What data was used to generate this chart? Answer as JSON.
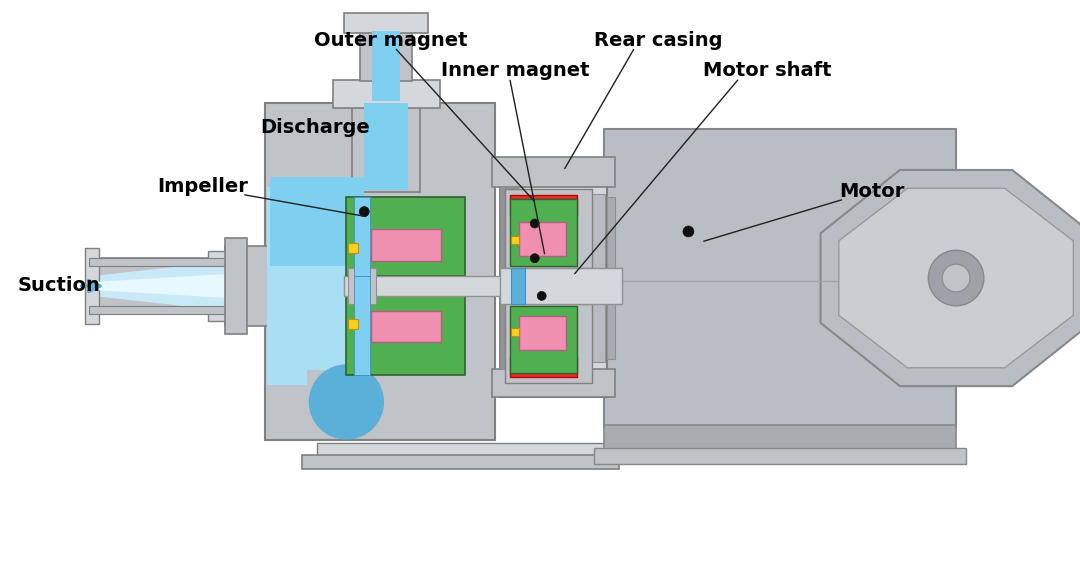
{
  "bg": "#ffffff",
  "cg1": "#c0c4c8",
  "cg2": "#d4d8dc",
  "cg3": "#a8acb0",
  "cg4": "#b8bcc0",
  "cg_dark": "#909498",
  "c_blue": "#7fd0f0",
  "c_blue2": "#a8dff5",
  "c_blue3": "#5ab0d8",
  "c_blue4": "#c8eaf8",
  "c_green": "#50b050",
  "c_green2": "#388038",
  "c_pink": "#f090b0",
  "c_red": "#e03030",
  "c_yellow": "#f8d020",
  "c_black": "#101010",
  "c_white": "#ffffff",
  "c_motor1": "#b8bec4",
  "c_motor2": "#caced2",
  "c_motor3": "#9ca2a8",
  "labels": {
    "outer_magnet": "Outer magnet",
    "inner_magnet": "Inner magnet",
    "rear_casing": "Rear casing",
    "motor_shaft": "Motor shaft",
    "discharge": "Discharge",
    "impeller": "Impeller",
    "suction": "Suction",
    "motor": "Motor"
  },
  "fontsize": 14,
  "fontweight": "bold"
}
